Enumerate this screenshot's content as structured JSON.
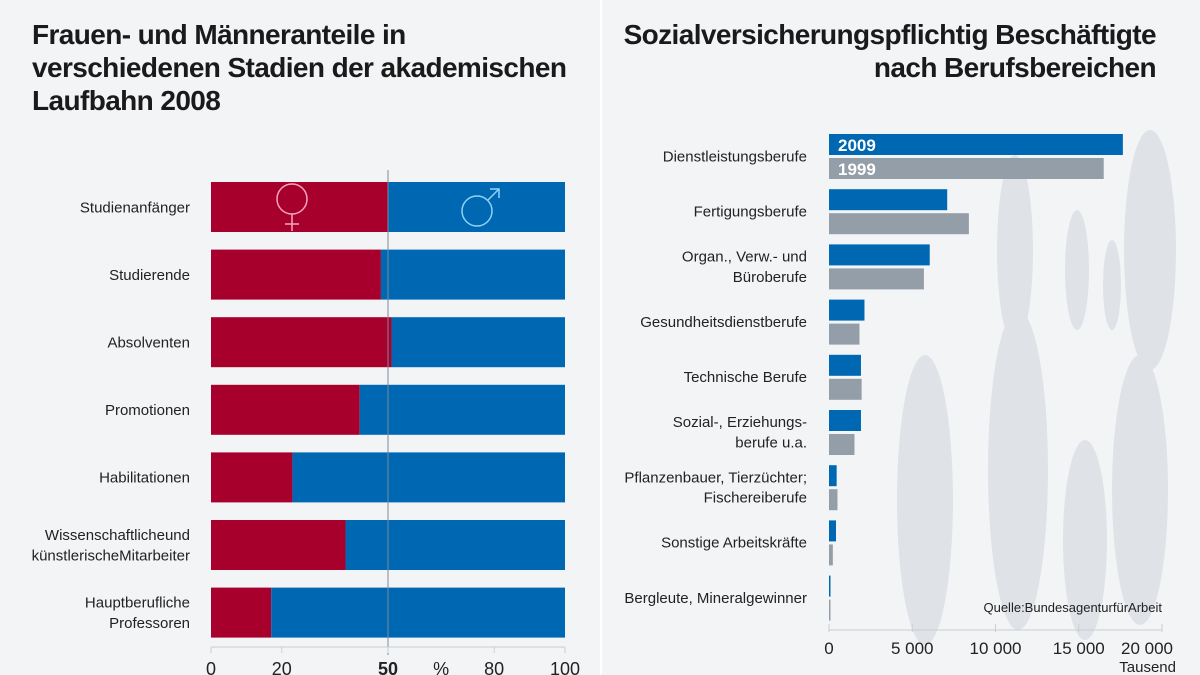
{
  "chart_data": [
    {
      "type": "bar",
      "orientation": "horizontal",
      "stacked": true,
      "title": "Frauen- und Männeranteile in verschiedenen Stadien der akademischen Laufbahn 2008",
      "categories": [
        "Studienanfänger",
        "Studierende",
        "Absolventen",
        "Promotionen",
        "Habilitationen",
        "Wissenschaftlicheund künstlerischeMitarbeiter",
        "Hauptberufliche Professoren"
      ],
      "series": [
        {
          "name": "♀",
          "color": "#a8002c",
          "values": [
            50,
            48,
            51,
            42,
            23,
            38,
            17
          ]
        },
        {
          "name": "♂",
          "color": "#0068b3",
          "values": [
            50,
            52,
            49,
            58,
            77,
            62,
            83
          ]
        }
      ],
      "xlim": [
        0,
        100
      ],
      "xticks": [
        "0",
        "20",
        "50",
        "%",
        "80",
        "100"
      ],
      "xtick_values": [
        0,
        20,
        50,
        65,
        80,
        100
      ],
      "xlabel": "%",
      "reference_line": 50
    },
    {
      "type": "bar",
      "orientation": "horizontal",
      "title": "Sozialversicherungspflichtig Beschäftigte nach Berufsbereichen",
      "categories": [
        "Dienstleistungsberufe",
        "Fertigungsberufe",
        "Organ., Verw.- und Büroberufe",
        "Gesundheitsdienstberufe",
        "Technische Berufe",
        "Sozial-, Erziehungs- berufe u.a.",
        "Pflanzenbauer, Tierzüchter; Fischereiberufe",
        "Sonstige Arbeitskräfte",
        "Bergleute, Mineralgewinner"
      ],
      "series": [
        {
          "name": "2009",
          "color": "#0068b3",
          "values": [
            17650,
            7100,
            6050,
            2130,
            1920,
            1920,
            460,
            420,
            90
          ]
        },
        {
          "name": "1999",
          "color": "#939ea8",
          "values": [
            16500,
            8400,
            5700,
            1830,
            1960,
            1530,
            510,
            230,
            90
          ]
        }
      ],
      "xlim": [
        0,
        20000
      ],
      "xticks": [
        "0",
        "5 000",
        "10 000",
        "15 000",
        "20 000"
      ],
      "xtick_values": [
        0,
        5000,
        10000,
        15000,
        20000
      ],
      "xlabel": "Tausend",
      "source": "Quelle:BundesagenturfürArbeit"
    }
  ]
}
